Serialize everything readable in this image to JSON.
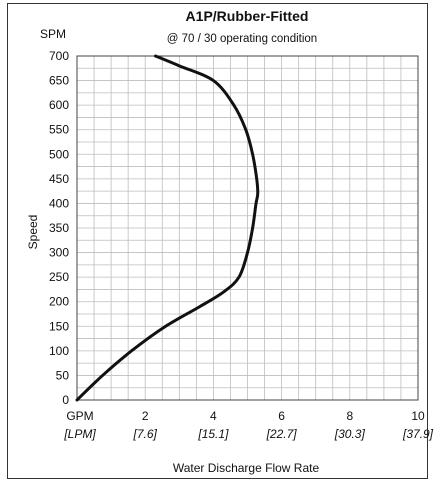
{
  "chart_data": {
    "type": "line",
    "title": "A1P/Rubber-Fitted",
    "subtitle": "@ 70 / 30 operating condition",
    "xlabel": "Water Discharge Flow Rate",
    "ylabel": "Speed",
    "y_unit": "SPM",
    "x_unit": "GPM",
    "x_unit_alt": "[LPM]",
    "xlim": [
      0,
      10
    ],
    "ylim": [
      0,
      700
    ],
    "x_ticks": [
      {
        "value": 2,
        "label": "2",
        "alt": "[7.6]"
      },
      {
        "value": 4,
        "label": "4",
        "alt": "[15.1]"
      },
      {
        "value": 6,
        "label": "6",
        "alt": "[22.7]"
      },
      {
        "value": 8,
        "label": "8",
        "alt": "[30.3]"
      },
      {
        "value": 10,
        "label": "10",
        "alt": "[37.9]"
      }
    ],
    "y_ticks": [
      "0",
      "50",
      "100",
      "150",
      "200",
      "250",
      "300",
      "350",
      "400",
      "450",
      "500",
      "550",
      "600",
      "650",
      "700"
    ],
    "grid": true,
    "series": [
      {
        "color": "#111111",
        "x": [
          0,
          0.75,
          1.6,
          2.6,
          3.6,
          4.3,
          4.75,
          5.0,
          5.15,
          5.25,
          5.3,
          5.27,
          5.15,
          4.95,
          4.6,
          4.0,
          3.0,
          2.3
        ],
        "y": [
          0,
          50,
          100,
          150,
          190,
          220,
          250,
          300,
          350,
          400,
          420,
          450,
          500,
          550,
          600,
          650,
          680,
          700
        ]
      }
    ]
  }
}
